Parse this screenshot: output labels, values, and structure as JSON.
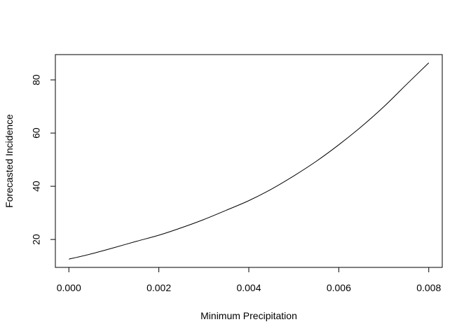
{
  "chart_data": {
    "type": "line",
    "title": "",
    "xlabel": "Minimum Precipitation",
    "ylabel": "Forecasted Incidence",
    "xlim": [
      -0.0003,
      0.0083
    ],
    "ylim": [
      9.5,
      89.5
    ],
    "xticks": [
      0.0,
      0.002,
      0.004,
      0.006,
      0.008
    ],
    "xtick_labels": [
      "0.000",
      "0.002",
      "0.004",
      "0.006",
      "0.008"
    ],
    "yticks": [
      20,
      40,
      60,
      80
    ],
    "ytick_labels": [
      "20",
      "40",
      "60",
      "80"
    ],
    "grid": false,
    "legend": "none",
    "line_color": "#000000",
    "series": [
      {
        "x": [
          0.0,
          0.0005,
          0.001,
          0.0015,
          0.002,
          0.0025,
          0.003,
          0.0035,
          0.004,
          0.0045,
          0.005,
          0.0055,
          0.006,
          0.0065,
          0.007,
          0.0075,
          0.008
        ],
        "y": [
          12.6,
          14.6,
          16.9,
          19.3,
          21.6,
          24.4,
          27.5,
          31.0,
          34.6,
          38.9,
          43.9,
          49.4,
          55.6,
          62.4,
          69.9,
          78.2,
          86.4
        ]
      }
    ]
  }
}
